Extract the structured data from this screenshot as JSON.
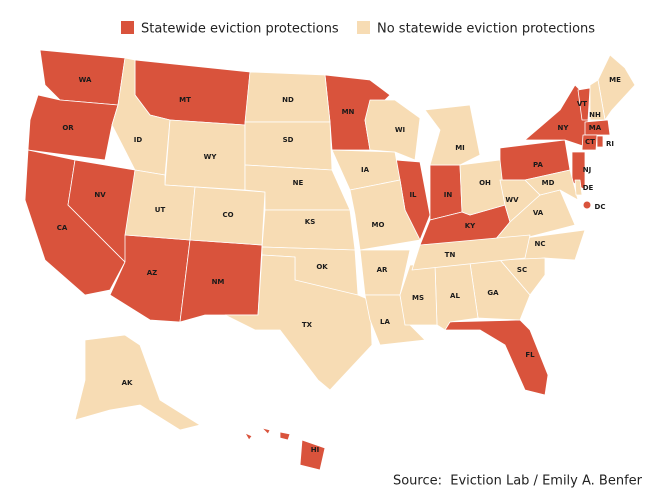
{
  "legend": [
    {
      "label": "Statewide eviction protections",
      "color": "#d9533c",
      "states": [
        "WA",
        "OR",
        "CA",
        "NV",
        "AZ",
        "NM",
        "MT",
        "MN",
        "IL",
        "IN",
        "KY",
        "PA",
        "NY",
        "VT",
        "MA",
        "CT",
        "RI",
        "NJ",
        "DC",
        "FL",
        "HI"
      ]
    },
    {
      "label": "No statewide eviction protections",
      "color": "#f7dcb4",
      "states": [
        "ID",
        "WY",
        "UT",
        "CO",
        "ND",
        "SD",
        "NE",
        "KS",
        "OK",
        "TX",
        "IA",
        "MO",
        "AR",
        "LA",
        "WI",
        "MI",
        "OH",
        "WV",
        "VA",
        "NC",
        "SC",
        "GA",
        "AL",
        "MS",
        "TN",
        "ME",
        "NH",
        "MD",
        "DE",
        "AK"
      ]
    }
  ],
  "source": "Source:  Eviction Lab / Emily A. Benfer"
}
